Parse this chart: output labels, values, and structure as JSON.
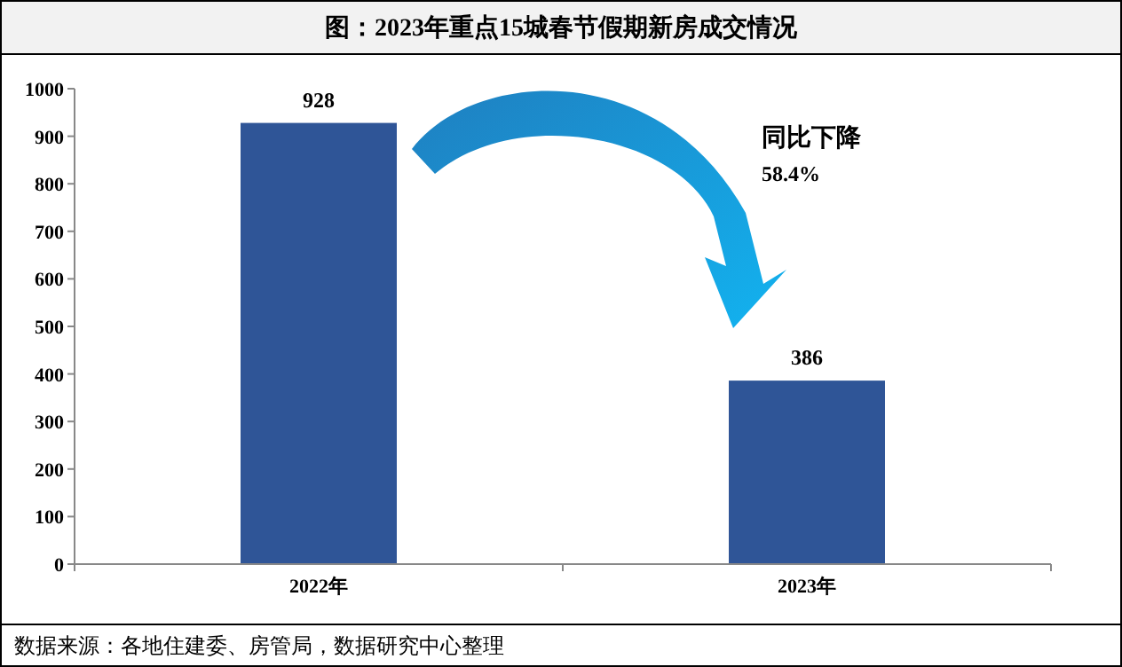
{
  "chart_data": {
    "type": "bar",
    "title": "图：2023年重点15城春节假期新房成交情况",
    "categories": [
      "2022年",
      "2023年"
    ],
    "values": [
      928,
      386
    ],
    "color": "#2f5597",
    "ylim": [
      0,
      1000
    ],
    "yticks": [
      0,
      100,
      200,
      300,
      400,
      500,
      600,
      700,
      800,
      900,
      1000
    ],
    "data_labels": true,
    "grid": false,
    "annotations": [
      "同比下降",
      "58.4%",
      "数据来源：各地住建委、房管局，数据研究中心整理"
    ]
  }
}
